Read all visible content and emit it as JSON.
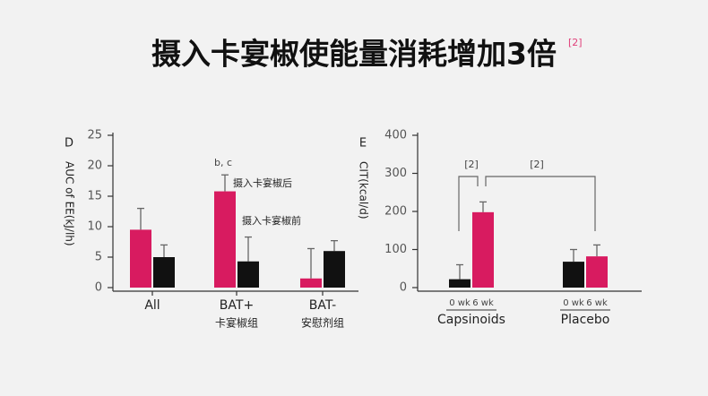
{
  "title": "摄入卡宴椒使能量消耗增加3倍",
  "title_ref": "[2]",
  "chart_data": [
    {
      "type": "bar",
      "panel": "D",
      "y_label": "AUC of EE(kJ/lh)",
      "categories": [
        "All",
        "BAT+",
        "BAT-"
      ],
      "subcategories": [
        null,
        "卡宴椒组",
        "安慰剂组"
      ],
      "series": [
        {
          "name": "摄入卡宴椒后",
          "color": "#d81b60",
          "values": [
            9.5,
            15.8,
            1.5
          ],
          "errors": [
            3.5,
            2.7,
            4.9
          ]
        },
        {
          "name": "摄入卡宴椒前",
          "color": "#111111",
          "values": [
            5,
            4.3,
            6
          ],
          "errors": [
            2,
            4,
            1.7
          ]
        }
      ],
      "ylim": [
        0,
        25
      ],
      "yticks": [
        0,
        5,
        10,
        15,
        20,
        25
      ],
      "annotations": [
        "b, c"
      ]
    },
    {
      "type": "bar",
      "panel": "E",
      "y_label": "CIT(kcal/d)",
      "categories": [
        "Capsinoids",
        "Placebo"
      ],
      "series": [
        {
          "name": "0 wk",
          "color": "#111111",
          "values": [
            22,
            68
          ],
          "errors": [
            38,
            32
          ]
        },
        {
          "name": "6 wk",
          "color": "#d81b60",
          "values": [
            198,
            82
          ],
          "errors": [
            27,
            30
          ]
        }
      ],
      "ylim": [
        0,
        400
      ],
      "yticks": [
        0,
        100,
        200,
        300,
        400
      ],
      "annotations": [
        "[2]",
        "[2]"
      ]
    }
  ]
}
